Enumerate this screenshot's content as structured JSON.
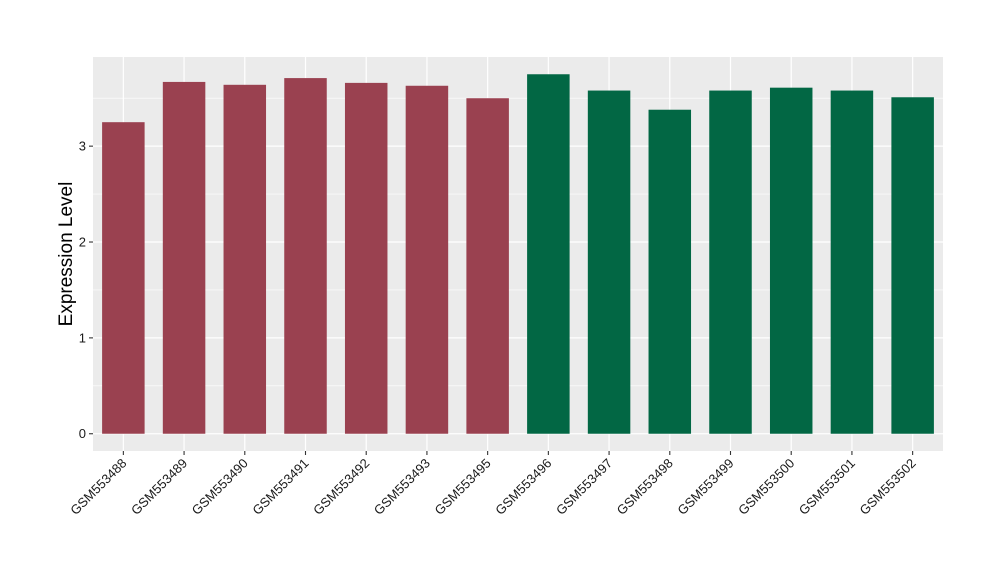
{
  "chart_data": {
    "type": "bar",
    "ylabel": "Expression Level",
    "xlabel": "",
    "ylim": [
      -0.18,
      3.93
    ],
    "yticks": [
      0,
      1,
      2,
      3
    ],
    "grid": true,
    "categories": [
      "GSM553488",
      "GSM553489",
      "GSM553490",
      "GSM553491",
      "GSM553492",
      "GSM553493",
      "GSM553495",
      "GSM553496",
      "GSM553497",
      "GSM553498",
      "GSM553499",
      "GSM553500",
      "GSM553501",
      "GSM553502"
    ],
    "values": [
      3.25,
      3.67,
      3.64,
      3.71,
      3.66,
      3.63,
      3.5,
      3.75,
      3.58,
      3.38,
      3.58,
      3.61,
      3.58,
      3.51
    ],
    "groups": [
      0,
      0,
      0,
      0,
      0,
      0,
      0,
      1,
      1,
      1,
      1,
      1,
      1,
      1
    ],
    "colors": [
      "#9a4150",
      "#026744"
    ],
    "panel_background": "#ebebeb",
    "grid_color": "#ffffff"
  }
}
